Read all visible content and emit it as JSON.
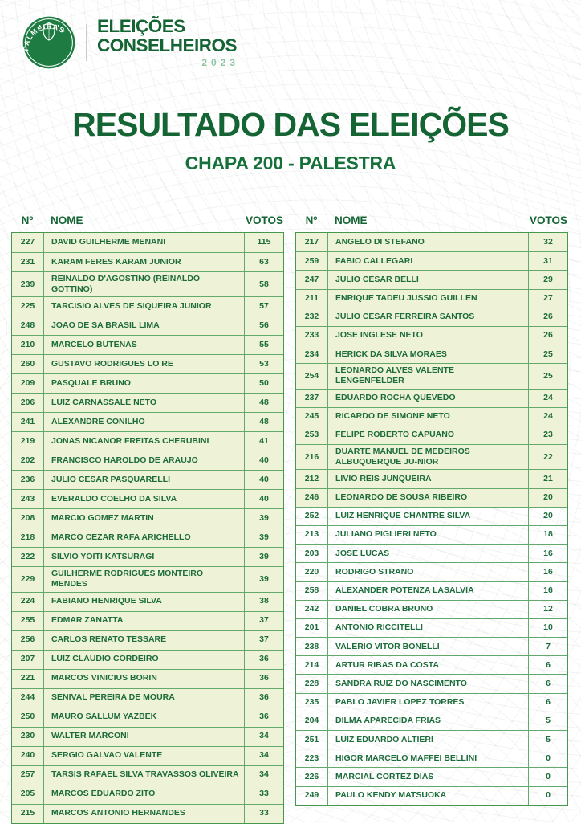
{
  "header": {
    "logo_text": "PALMEIRAS",
    "title_line1": "ELEIÇÕES",
    "title_line2": "CONSELHEIROS",
    "year": "2023"
  },
  "main": {
    "title": "RESULTADO DAS ELEIÇÕES",
    "subtitle": "CHAPA 200 - PALESTRA"
  },
  "columns": {
    "number": "Nº",
    "name": "NOME",
    "votes": "VOTOS"
  },
  "colors": {
    "brand_green": "#156434",
    "row_highlight_bg": "#eef2d6",
    "table_border": "#47984f",
    "cell_text": "#1d6c3c",
    "year_green": "#8cc6a1"
  },
  "tables": {
    "left": [
      {
        "n": "227",
        "nome": "DAVID GUILHERME MENANI",
        "votos": "115",
        "highlighted": true
      },
      {
        "n": "231",
        "nome": "KARAM FERES KARAM JUNIOR",
        "votos": "63",
        "highlighted": true
      },
      {
        "n": "239",
        "nome": "REINALDO D'AGOSTINO (REINALDO GOTTINO)",
        "votos": "58",
        "highlighted": true
      },
      {
        "n": "225",
        "nome": "TARCISIO ALVES DE SIQUEIRA JUNIOR",
        "votos": "57",
        "highlighted": true
      },
      {
        "n": "248",
        "nome": "JOAO DE SA BRASIL LIMA",
        "votos": "56",
        "highlighted": true
      },
      {
        "n": "210",
        "nome": "MARCELO BUTENAS",
        "votos": "55",
        "highlighted": true
      },
      {
        "n": "260",
        "nome": "GUSTAVO RODRIGUES LO RE",
        "votos": "53",
        "highlighted": true
      },
      {
        "n": "209",
        "nome": "PASQUALE BRUNO",
        "votos": "50",
        "highlighted": true
      },
      {
        "n": "206",
        "nome": "LUIZ CARNASSALE NETO",
        "votos": "48",
        "highlighted": true
      },
      {
        "n": "241",
        "nome": "ALEXANDRE CONILHO",
        "votos": "48",
        "highlighted": true
      },
      {
        "n": "219",
        "nome": "JONAS NICANOR FREITAS CHERUBINI",
        "votos": "41",
        "highlighted": true
      },
      {
        "n": "202",
        "nome": "FRANCISCO HAROLDO DE ARAUJO",
        "votos": "40",
        "highlighted": true
      },
      {
        "n": "236",
        "nome": "JULIO CESAR PASQUARELLI",
        "votos": "40",
        "highlighted": true
      },
      {
        "n": "243",
        "nome": "EVERALDO COELHO DA SILVA",
        "votos": "40",
        "highlighted": true
      },
      {
        "n": "208",
        "nome": "MARCIO GOMEZ MARTIN",
        "votos": "39",
        "highlighted": true
      },
      {
        "n": "218",
        "nome": "MARCO CEZAR RAFA ARICHELLO",
        "votos": "39",
        "highlighted": true
      },
      {
        "n": "222",
        "nome": "SILVIO YOITI KATSURAGI",
        "votos": "39",
        "highlighted": true
      },
      {
        "n": "229",
        "nome": "GUILHERME RODRIGUES MONTEIRO MENDES",
        "votos": "39",
        "highlighted": true
      },
      {
        "n": "224",
        "nome": "FABIANO HENRIQUE SILVA",
        "votos": "38",
        "highlighted": true
      },
      {
        "n": "255",
        "nome": "EDMAR ZANATTA",
        "votos": "37",
        "highlighted": true
      },
      {
        "n": "256",
        "nome": "CARLOS RENATO TESSARE",
        "votos": "37",
        "highlighted": true
      },
      {
        "n": "207",
        "nome": "LUIZ CLAUDIO CORDEIRO",
        "votos": "36",
        "highlighted": true
      },
      {
        "n": "221",
        "nome": "MARCOS VINICIUS BORIN",
        "votos": "36",
        "highlighted": true
      },
      {
        "n": "244",
        "nome": "SENIVAL PEREIRA DE MOURA",
        "votos": "36",
        "highlighted": true
      },
      {
        "n": "250",
        "nome": "MAURO SALLUM YAZBEK",
        "votos": "36",
        "highlighted": true
      },
      {
        "n": "230",
        "nome": "WALTER MARCONI",
        "votos": "34",
        "highlighted": true
      },
      {
        "n": "240",
        "nome": "SERGIO GALVAO VALENTE",
        "votos": "34",
        "highlighted": true
      },
      {
        "n": "257",
        "nome": "TARSIS RAFAEL SILVA TRAVASSOS OLIVEIRA",
        "votos": "34",
        "highlighted": true
      },
      {
        "n": "205",
        "nome": "MARCOS EDUARDO ZITO",
        "votos": "33",
        "highlighted": true
      },
      {
        "n": "215",
        "nome": "MARCOS ANTONIO HERNANDES",
        "votos": "33",
        "highlighted": true
      }
    ],
    "right": [
      {
        "n": "217",
        "nome": "ANGELO DI STEFANO",
        "votos": "32",
        "highlighted": true
      },
      {
        "n": "259",
        "nome": "FABIO CALLEGARI",
        "votos": "31",
        "highlighted": true
      },
      {
        "n": "247",
        "nome": "JULIO CESAR BELLI",
        "votos": "29",
        "highlighted": true
      },
      {
        "n": "211",
        "nome": "ENRIQUE TADEU JUSSIO GUILLEN",
        "votos": "27",
        "highlighted": true
      },
      {
        "n": "232",
        "nome": "JULIO CESAR FERREIRA SANTOS",
        "votos": "26",
        "highlighted": true
      },
      {
        "n": "233",
        "nome": "JOSE INGLESE NETO",
        "votos": "26",
        "highlighted": true
      },
      {
        "n": "234",
        "nome": "HERICK DA SILVA MORAES",
        "votos": "25",
        "highlighted": true
      },
      {
        "n": "254",
        "nome": "LEONARDO ALVES VALENTE LENGENFELDER",
        "votos": "25",
        "highlighted": true
      },
      {
        "n": "237",
        "nome": "EDUARDO ROCHA QUEVEDO",
        "votos": "24",
        "highlighted": true
      },
      {
        "n": "245",
        "nome": "RICARDO DE SIMONE NETO",
        "votos": "24",
        "highlighted": true
      },
      {
        "n": "253",
        "nome": "FELIPE ROBERTO CAPUANO",
        "votos": "23",
        "highlighted": true
      },
      {
        "n": "216",
        "nome": "DUARTE MANUEL DE MEDEIROS ALBUQUERQUE JU-NIOR",
        "votos": "22",
        "highlighted": true
      },
      {
        "n": "212",
        "nome": "LIVIO REIS JUNQUEIRA",
        "votos": "21",
        "highlighted": true
      },
      {
        "n": "246",
        "nome": "LEONARDO DE SOUSA RIBEIRO",
        "votos": "20",
        "highlighted": true
      },
      {
        "n": "252",
        "nome": "LUIZ HENRIQUE CHANTRE SILVA",
        "votos": "20",
        "highlighted": false
      },
      {
        "n": "213",
        "nome": "JULIANO PIGLIERI NETO",
        "votos": "18",
        "highlighted": false
      },
      {
        "n": "203",
        "nome": "JOSE LUCAS",
        "votos": "16",
        "highlighted": false
      },
      {
        "n": "220",
        "nome": "RODRIGO STRANO",
        "votos": "16",
        "highlighted": false
      },
      {
        "n": "258",
        "nome": "ALEXANDER POTENZA LASALVIA",
        "votos": "16",
        "highlighted": false
      },
      {
        "n": "242",
        "nome": "DANIEL COBRA BRUNO",
        "votos": "12",
        "highlighted": false
      },
      {
        "n": "201",
        "nome": "ANTONIO RICCITELLI",
        "votos": "10",
        "highlighted": false
      },
      {
        "n": "238",
        "nome": "VALERIO VITOR BONELLI",
        "votos": "7",
        "highlighted": false
      },
      {
        "n": "214",
        "nome": "ARTUR RIBAS DA COSTA",
        "votos": "6",
        "highlighted": false
      },
      {
        "n": "228",
        "nome": "SANDRA RUIZ DO NASCIMENTO",
        "votos": "6",
        "highlighted": false
      },
      {
        "n": "235",
        "nome": "PABLO JAVIER LOPEZ TORRES",
        "votos": "6",
        "highlighted": false
      },
      {
        "n": "204",
        "nome": "DILMA APARECIDA FRIAS",
        "votos": "5",
        "highlighted": false
      },
      {
        "n": "251",
        "nome": "LUIZ EDUARDO ALTIERI",
        "votos": "5",
        "highlighted": false
      },
      {
        "n": "223",
        "nome": "HIGOR MARCELO MAFFEI BELLINI",
        "votos": "0",
        "highlighted": false
      },
      {
        "n": "226",
        "nome": "MARCIAL CORTEZ DIAS",
        "votos": "0",
        "highlighted": false
      },
      {
        "n": "249",
        "nome": "PAULO KENDY MATSUOKA",
        "votos": "0",
        "highlighted": false
      }
    ]
  }
}
